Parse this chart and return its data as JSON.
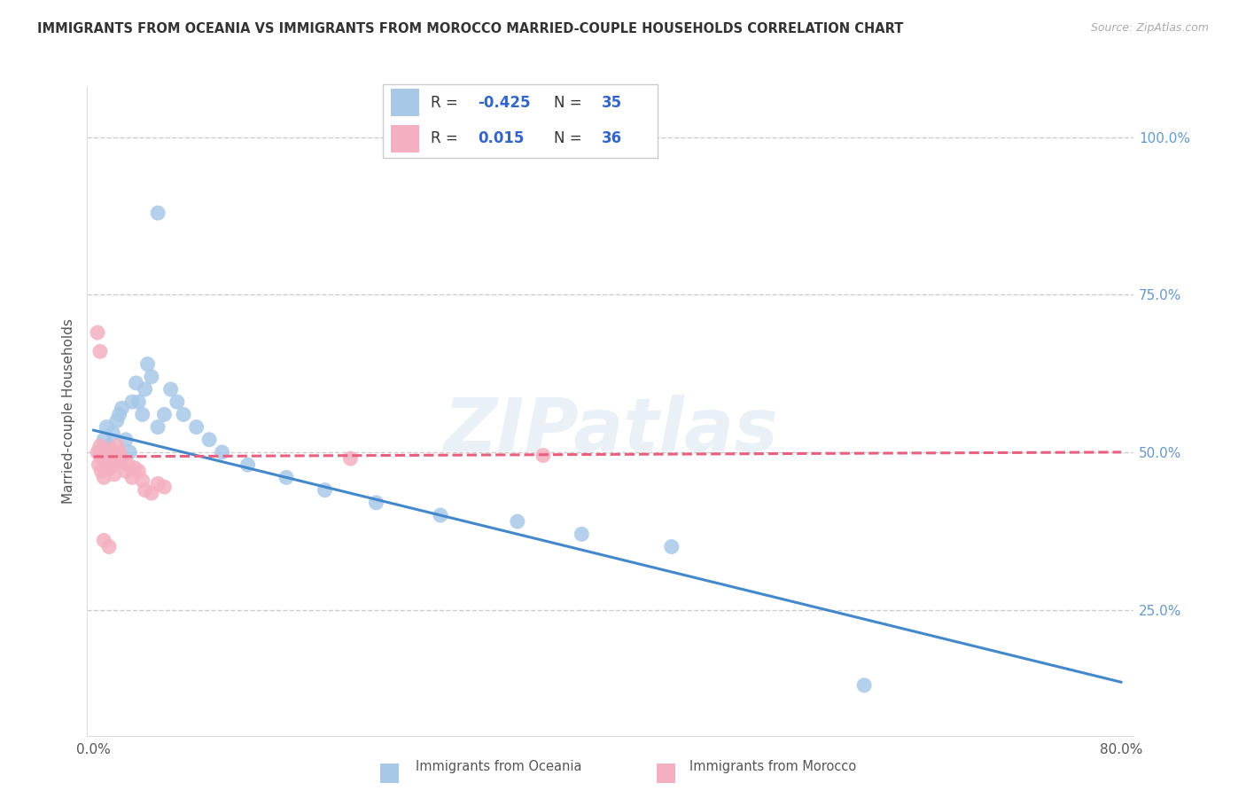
{
  "title": "IMMIGRANTS FROM OCEANIA VS IMMIGRANTS FROM MOROCCO MARRIED-COUPLE HOUSEHOLDS CORRELATION CHART",
  "source": "Source: ZipAtlas.com",
  "ylabel": "Married-couple Households",
  "xlim": [
    0.0,
    0.8
  ],
  "ylim": [
    0.05,
    1.08
  ],
  "y_tick_vals": [
    1.0,
    0.75,
    0.5,
    0.25
  ],
  "y_tick_labels": [
    "100.0%",
    "75.0%",
    "50.0%",
    "25.0%"
  ],
  "x_tick_vals": [
    0.0,
    0.8
  ],
  "x_tick_labels": [
    "0.0%",
    "80.0%"
  ],
  "watermark": "ZIPatlas",
  "blue_scatter": "#a8c8e8",
  "pink_scatter": "#f4b0c0",
  "blue_line": "#4488cc",
  "pink_line": "#e86080",
  "grid_color": "#cccccc",
  "legend_border": "#cccccc",
  "right_tick_color": "#6699cc",
  "oceania_x": [
    0.005,
    0.008,
    0.01,
    0.012,
    0.015,
    0.018,
    0.02,
    0.022,
    0.025,
    0.025,
    0.03,
    0.032,
    0.035,
    0.038,
    0.04,
    0.042,
    0.045,
    0.05,
    0.055,
    0.06,
    0.065,
    0.07,
    0.08,
    0.09,
    0.1,
    0.12,
    0.15,
    0.18,
    0.22,
    0.27,
    0.33,
    0.38,
    0.45,
    0.6,
    0.05
  ],
  "oceania_y": [
    0.5,
    0.52,
    0.54,
    0.51,
    0.53,
    0.55,
    0.56,
    0.57,
    0.52,
    0.5,
    0.58,
    0.61,
    0.58,
    0.56,
    0.6,
    0.64,
    0.62,
    0.54,
    0.56,
    0.6,
    0.58,
    0.56,
    0.54,
    0.52,
    0.5,
    0.48,
    0.46,
    0.44,
    0.42,
    0.4,
    0.39,
    0.37,
    0.35,
    0.13,
    0.88
  ],
  "morocco_x": [
    0.002,
    0.003,
    0.004,
    0.005,
    0.005,
    0.006,
    0.007,
    0.008,
    0.008,
    0.01,
    0.01,
    0.012,
    0.013,
    0.014,
    0.015,
    0.015,
    0.016,
    0.018,
    0.02,
    0.02,
    0.022,
    0.025,
    0.025,
    0.028,
    0.03,
    0.03,
    0.032,
    0.035,
    0.038,
    0.04,
    0.04,
    0.045,
    0.05,
    0.06,
    0.2,
    0.35
  ],
  "morocco_y": [
    0.5,
    0.48,
    0.51,
    0.52,
    0.49,
    0.5,
    0.47,
    0.46,
    0.49,
    0.51,
    0.48,
    0.5,
    0.49,
    0.51,
    0.48,
    0.5,
    0.47,
    0.49,
    0.5,
    0.48,
    0.51,
    0.49,
    0.47,
    0.5,
    0.48,
    0.46,
    0.49,
    0.46,
    0.47,
    0.46,
    0.44,
    0.42,
    0.44,
    0.45,
    0.49,
    0.49
  ]
}
